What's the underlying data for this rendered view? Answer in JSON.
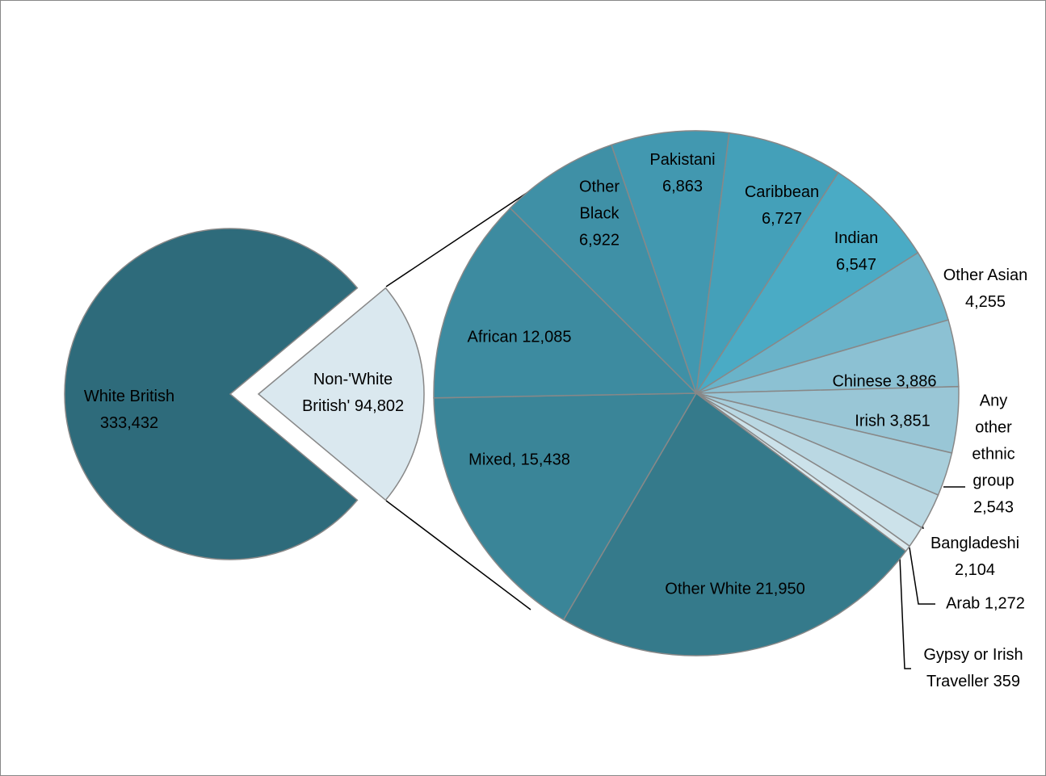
{
  "chart_data": [
    {
      "type": "pie",
      "categories": [
        "Non-'White British'",
        "White British"
      ],
      "values": [
        94802,
        333432
      ],
      "value_labels": [
        "94,802",
        "333,432"
      ],
      "colors": [
        "#dae8ef",
        "#2e6b7b"
      ]
    },
    {
      "type": "pie",
      "categories": [
        "Other White",
        "Mixed,",
        "African",
        "Other Black",
        "Pakistani",
        "Caribbean",
        "Indian",
        "Other Asian",
        "Chinese",
        "Irish",
        "Any other ethnic group",
        "Bangladeshi",
        "Arab",
        "Gypsy or Irish Traveller"
      ],
      "values": [
        21950,
        15438,
        12085,
        6922,
        6863,
        6727,
        6547,
        4255,
        3886,
        3851,
        2543,
        2104,
        1272,
        359
      ],
      "value_labels": [
        "21,950",
        "15,438",
        "12,085",
        "6,922",
        "6,863",
        "6,727",
        "6,547",
        "4,255",
        "3,886",
        "3,851",
        "2,543",
        "2,104",
        "1,272",
        "359"
      ],
      "colors": [
        "#357a8b",
        "#3a8598",
        "#3d8ba0",
        "#3f90a6",
        "#4298b0",
        "#44a0b9",
        "#4aabc5",
        "#6ab3c9",
        "#8cc1d3",
        "#99c6d6",
        "#a8cedb",
        "#bad8e3",
        "#cce2ea",
        "#dceaef"
      ]
    }
  ]
}
